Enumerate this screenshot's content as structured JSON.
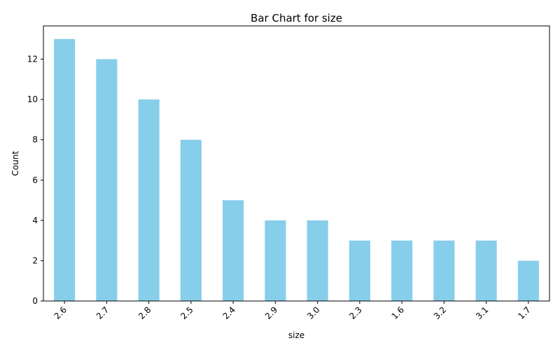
{
  "chart_data": {
    "type": "bar",
    "title": "Bar Chart for size",
    "xlabel": "size",
    "ylabel": "Count",
    "categories": [
      "2.6",
      "2.7",
      "2.8",
      "2.5",
      "2.4",
      "2.9",
      "3.0",
      "2.3",
      "1.6",
      "3.2",
      "3.1",
      "1.7"
    ],
    "values": [
      13,
      12,
      10,
      8,
      5,
      4,
      4,
      3,
      3,
      3,
      3,
      2
    ],
    "ylim": [
      0,
      13.65
    ],
    "yticks": [
      0,
      2,
      4,
      6,
      8,
      10,
      12
    ],
    "bar_color": "#87CEEB",
    "grid": false,
    "legend": "none"
  }
}
